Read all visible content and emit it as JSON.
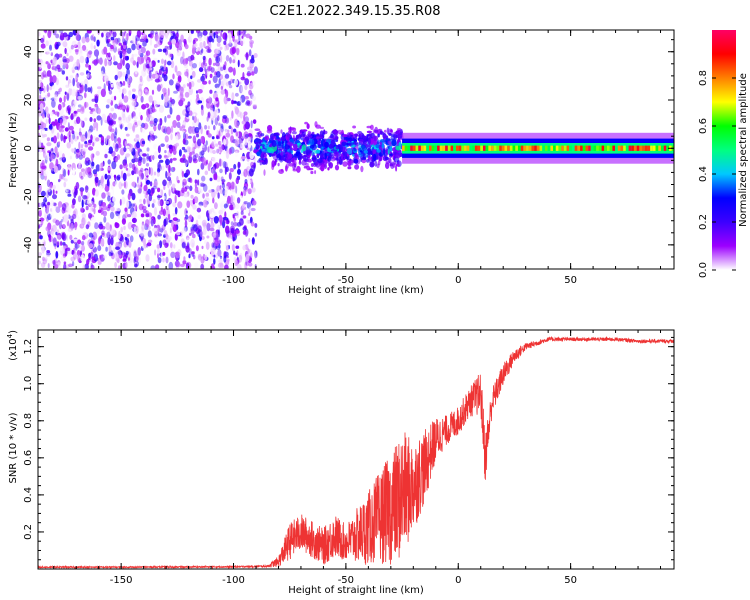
{
  "title": "C2E1.2022.349.15.35.R08",
  "chart_data": [
    {
      "type": "heatmap",
      "name": "spectrogram",
      "title": "C2E1.2022.349.15.35.R08",
      "xlabel": "Height of straight line (km)",
      "ylabel": "Frequency (Hz)",
      "xlim": [
        -187,
        96
      ],
      "ylim": [
        -50,
        49
      ],
      "xticks": [
        -150,
        -100,
        -50,
        0,
        50
      ],
      "xtick_labels": [
        "-150",
        "-100",
        "-50",
        "0",
        "50"
      ],
      "yticks": [
        -40,
        -20,
        0,
        20,
        40
      ],
      "ytick_labels": [
        "-40",
        "-20",
        "0",
        "20",
        "40"
      ],
      "colorbar": {
        "label": "Normalized spectral amplitude",
        "range": [
          0.0,
          1.0
        ],
        "ticks": [
          0.0,
          0.2,
          0.4,
          0.6,
          0.8
        ],
        "tick_labels": [
          "0.0",
          "0.2",
          "0.4",
          "0.6",
          "0.8"
        ],
        "colormap": [
          "#ffffff",
          "#9c00ff",
          "#3c00ff",
          "#0000ff",
          "#00c8ff",
          "#00ff80",
          "#00ff00",
          "#ffff00",
          "#ff8000",
          "#ff0000",
          "#ff0064"
        ]
      },
      "regions": [
        {
          "x_range": [
            -187,
            -90
          ],
          "pattern": "broadband noise",
          "amplitude": [
            0.0,
            0.25
          ]
        },
        {
          "x_range": [
            -90,
            -25
          ],
          "pattern": "speckled band",
          "freq_halfwidth": 8,
          "amplitude": [
            0.1,
            0.5
          ]
        },
        {
          "x_range": [
            -25,
            96
          ],
          "pattern": "narrow line at 0 Hz",
          "freq_halfwidth": 2,
          "amplitude": [
            0.5,
            0.95
          ]
        }
      ]
    },
    {
      "type": "line",
      "name": "snr",
      "xlabel": "Height of straight line (km)",
      "ylabel": "SNR (10 * v/v)",
      "y_multiplier": "(x10^4)",
      "y_multiplier_base": "(x10",
      "y_multiplier_exp": "4",
      "y_multiplier_close": ")",
      "xlim": [
        -187,
        96
      ],
      "ylim": [
        0,
        1.29
      ],
      "xticks": [
        -150,
        -100,
        -50,
        0,
        50
      ],
      "xtick_labels": [
        "-150",
        "-100",
        "-50",
        "0",
        "50"
      ],
      "yticks": [
        0.2,
        0.4,
        0.6,
        0.8,
        1.0,
        1.2
      ],
      "ytick_labels": [
        "0.2",
        "0.4",
        "0.6",
        "0.8",
        "1.0",
        "1.2"
      ],
      "color": "#ee3333",
      "series": [
        {
          "name": "SNR",
          "x": [
            -187,
            -150,
            -100,
            -85,
            -80,
            -75,
            -70,
            -65,
            -60,
            -55,
            -50,
            -45,
            -40,
            -35,
            -30,
            -25,
            -20,
            -15,
            -10,
            -5,
            0,
            5,
            10,
            12,
            15,
            20,
            25,
            30,
            35,
            40,
            50,
            60,
            70,
            80,
            90,
            96
          ],
          "values": [
            0.01,
            0.01,
            0.012,
            0.015,
            0.04,
            0.15,
            0.2,
            0.16,
            0.12,
            0.18,
            0.14,
            0.18,
            0.22,
            0.28,
            0.32,
            0.4,
            0.45,
            0.55,
            0.7,
            0.75,
            0.8,
            0.9,
            0.95,
            0.6,
            0.9,
            1.05,
            1.15,
            1.2,
            1.22,
            1.24,
            1.24,
            1.24,
            1.24,
            1.23,
            1.23,
            1.23
          ],
          "noise": [
            0.004,
            0.004,
            0.004,
            0.005,
            0.03,
            0.1,
            0.1,
            0.1,
            0.1,
            0.12,
            0.1,
            0.15,
            0.2,
            0.25,
            0.3,
            0.35,
            0.25,
            0.2,
            0.12,
            0.08,
            0.08,
            0.08,
            0.12,
            0.15,
            0.08,
            0.06,
            0.04,
            0.02,
            0.015,
            0.012,
            0.01,
            0.01,
            0.01,
            0.01,
            0.01,
            0.01
          ]
        }
      ]
    }
  ]
}
